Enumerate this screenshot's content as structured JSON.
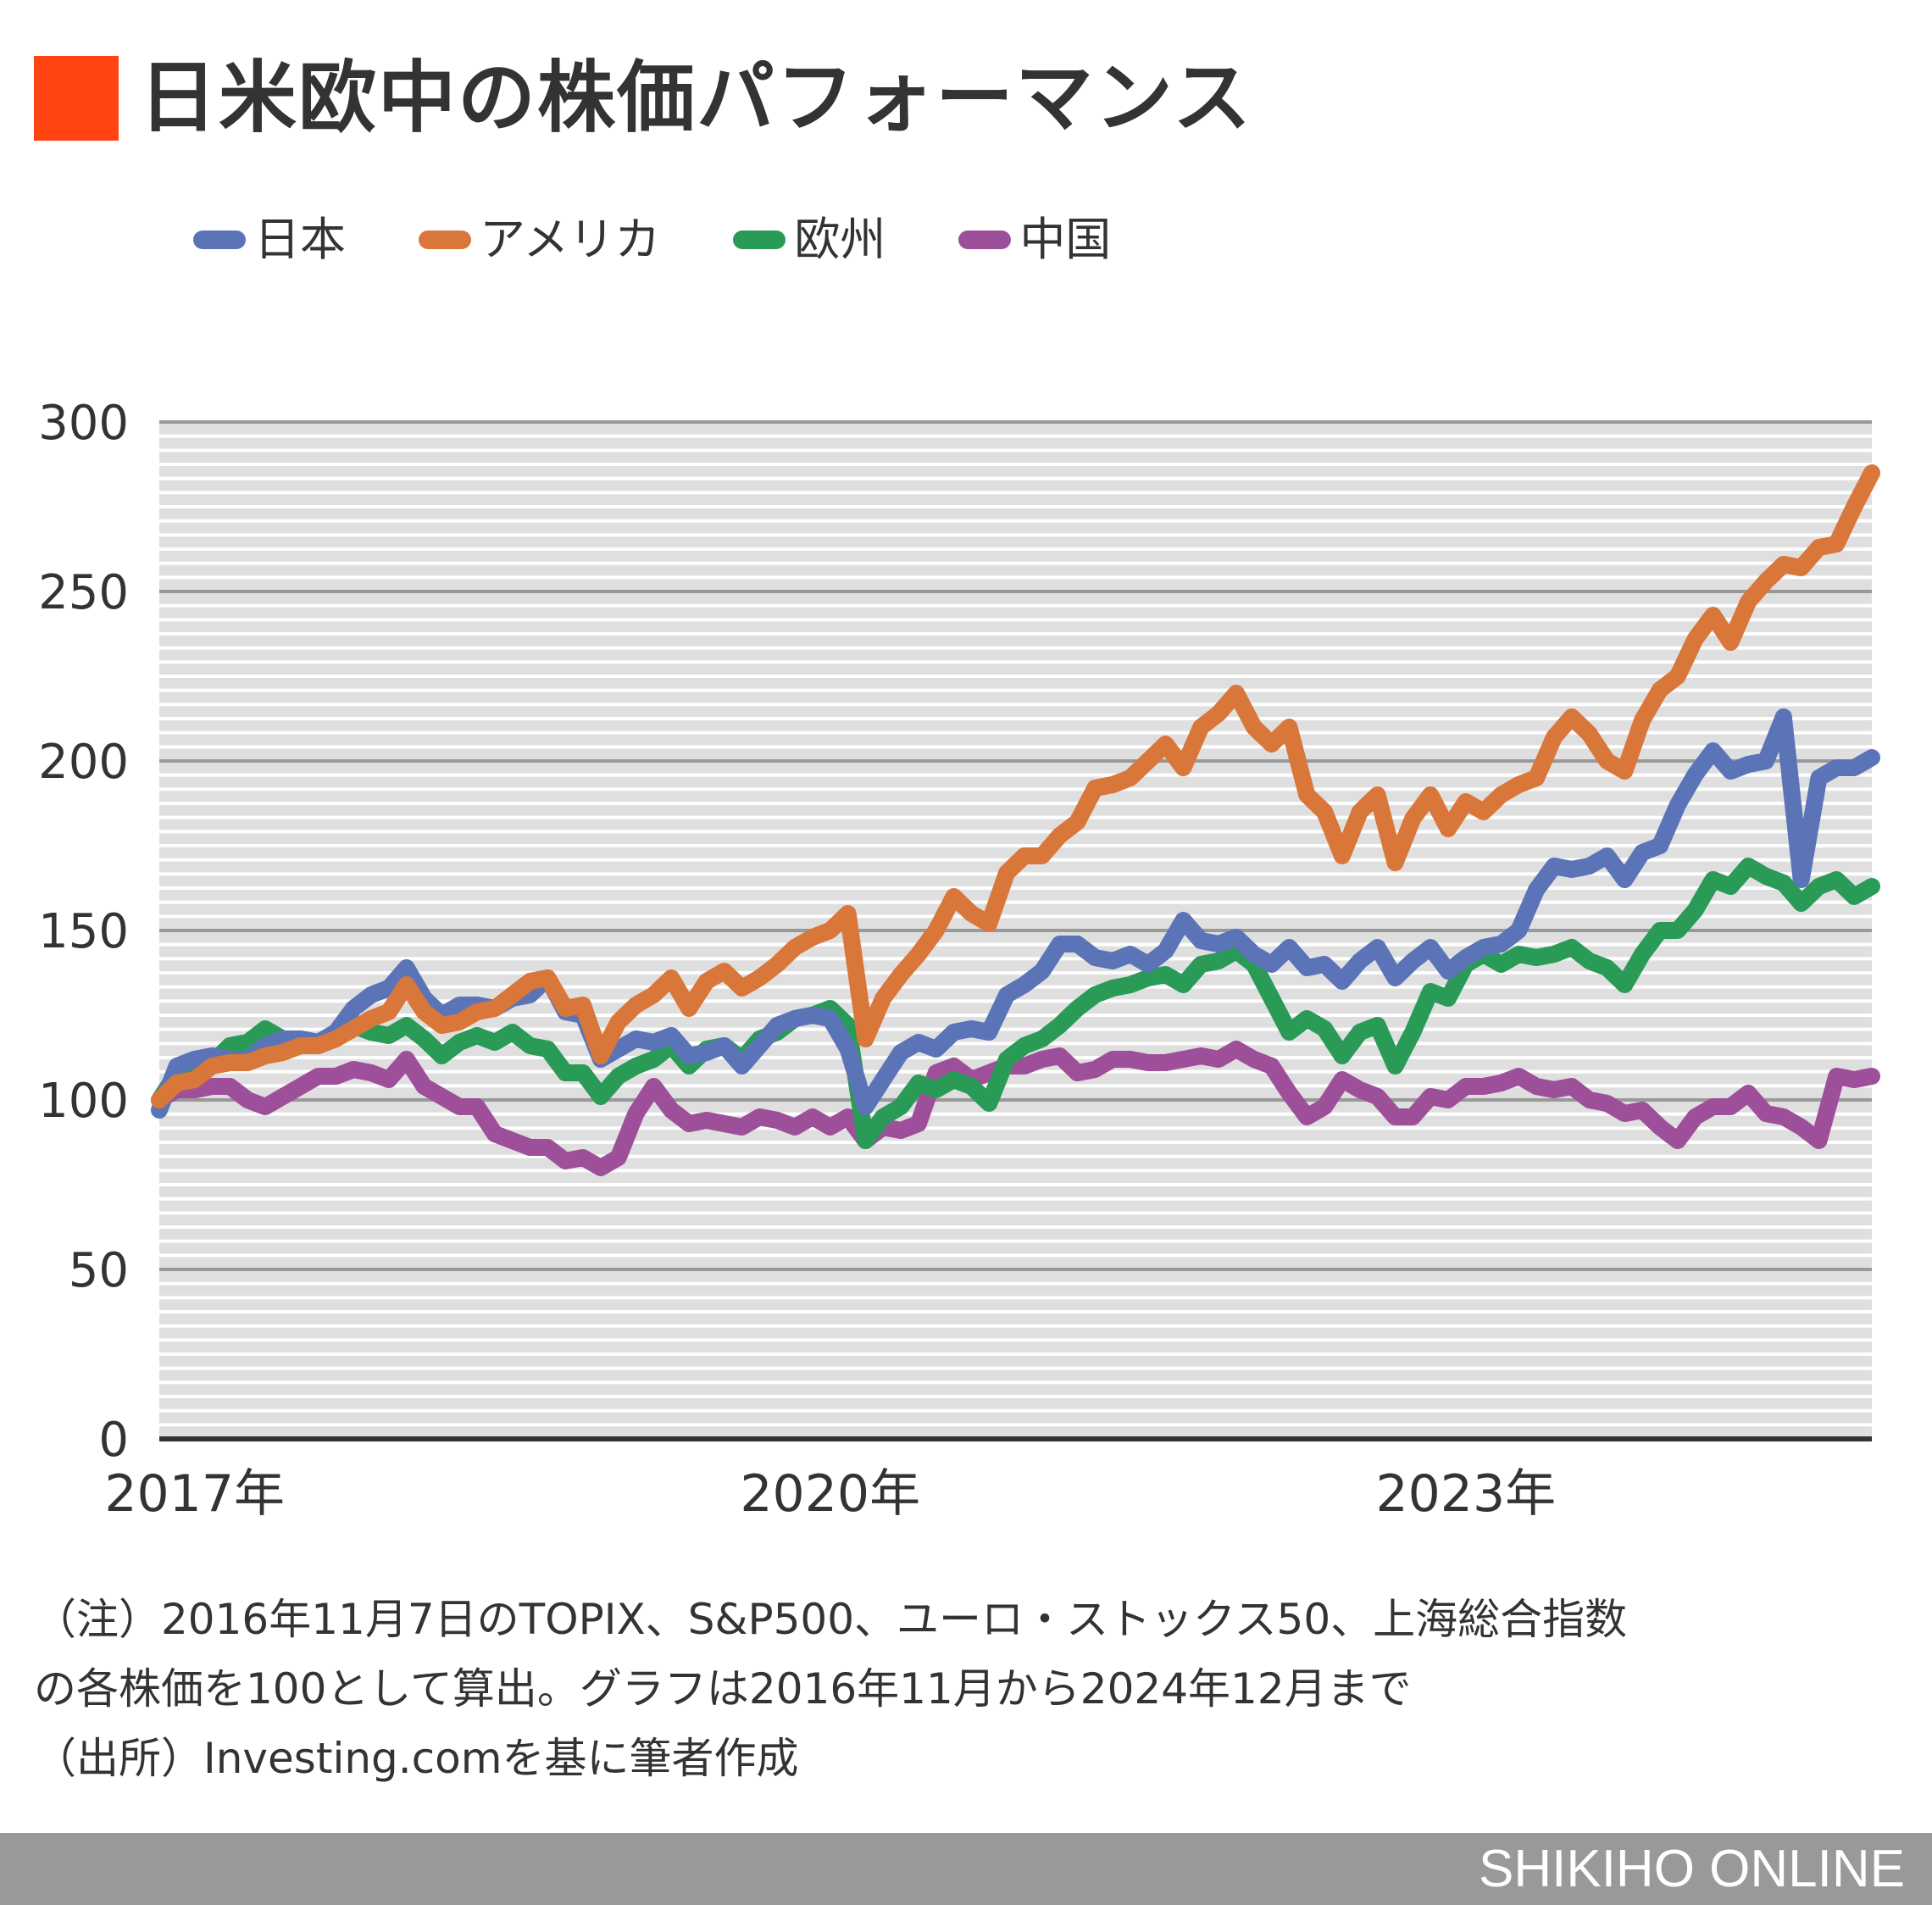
{
  "header": {
    "title": "日米欧中の株価パフォーマンス",
    "accent_color": "#FF4411"
  },
  "legend": [
    {
      "label": "日本",
      "color": "#5B74B8"
    },
    {
      "label": "アメリカ",
      "color": "#D9773A"
    },
    {
      "label": "欧州",
      "color": "#2A9A57"
    },
    {
      "label": "中国",
      "color": "#9E4F9A"
    }
  ],
  "notes": {
    "line1": "（注）2016年11月7日のTOPIX、S&P500、ユーロ・ストックス50、上海総合指数",
    "line2": "の各株価を100として算出。グラフは2016年11月から2024年12月まで",
    "line3": "（出所）Investing.comを基に筆者作成"
  },
  "footer": {
    "brand": "SHIKIHO ONLINE",
    "bar_color": "#999999"
  },
  "chart_data": {
    "type": "line",
    "title": "日米欧中の株価パフォーマンス",
    "xlabel": "",
    "ylabel": "",
    "ylim": [
      0,
      300
    ],
    "yticks": [
      0,
      50,
      100,
      150,
      200,
      250,
      300
    ],
    "xtick_labels": [
      {
        "label": "2017年",
        "month_index": 2
      },
      {
        "label": "2020年",
        "month_index": 38
      },
      {
        "label": "2023年",
        "month_index": 74
      }
    ],
    "x_start": "2016-11",
    "x_end": "2024-12",
    "x_unit": "month",
    "grid": true,
    "legend_position": "top",
    "series": [
      {
        "name": "日本",
        "color": "#5B74B8",
        "values": [
          97,
          110,
          112,
          113,
          112,
          112,
          116,
          118,
          118,
          117,
          120,
          127,
          131,
          133,
          139,
          130,
          125,
          128,
          128,
          127,
          130,
          131,
          136,
          126,
          125,
          112,
          115,
          118,
          117,
          119,
          113,
          114,
          116,
          110,
          116,
          122,
          124,
          125,
          124,
          115,
          98,
          106,
          114,
          117,
          115,
          120,
          121,
          120,
          131,
          134,
          138,
          146,
          146,
          142,
          141,
          143,
          140,
          144,
          153,
          147,
          146,
          148,
          143,
          140,
          145,
          139,
          140,
          135,
          141,
          145,
          136,
          141,
          145,
          138,
          142,
          145,
          146,
          150,
          162,
          169,
          168,
          169,
          172,
          165,
          173,
          175,
          187,
          196,
          203,
          197,
          199,
          200,
          213,
          165,
          195,
          198,
          198,
          201
        ]
      },
      {
        "name": "アメリカ",
        "color": "#D9773A",
        "values": [
          100,
          105,
          106,
          110,
          111,
          111,
          113,
          114,
          116,
          116,
          118,
          121,
          124,
          126,
          134,
          126,
          122,
          123,
          126,
          127,
          131,
          135,
          136,
          127,
          128,
          113,
          123,
          128,
          131,
          136,
          127,
          135,
          138,
          133,
          136,
          140,
          145,
          148,
          150,
          155,
          118,
          130,
          137,
          143,
          150,
          160,
          155,
          152,
          167,
          172,
          172,
          178,
          182,
          192,
          193,
          195,
          200,
          205,
          198,
          210,
          214,
          220,
          210,
          205,
          210,
          190,
          185,
          172,
          185,
          190,
          170,
          183,
          190,
          180,
          188,
          185,
          190,
          193,
          195,
          207,
          213,
          208,
          200,
          197,
          212,
          221,
          225,
          236,
          243,
          235,
          247,
          253,
          258,
          257,
          263,
          264,
          275,
          285
        ]
      },
      {
        "name": "欧州",
        "color": "#2A9A57",
        "values": [
          100,
          108,
          109,
          111,
          116,
          117,
          121,
          118,
          117,
          116,
          119,
          122,
          120,
          119,
          122,
          118,
          113,
          117,
          119,
          117,
          120,
          116,
          115,
          108,
          108,
          101,
          107,
          110,
          112,
          116,
          110,
          115,
          116,
          112,
          118,
          120,
          124,
          125,
          127,
          122,
          88,
          95,
          98,
          105,
          103,
          106,
          104,
          99,
          112,
          116,
          118,
          122,
          127,
          131,
          133,
          134,
          136,
          137,
          134,
          140,
          141,
          144,
          140,
          130,
          120,
          124,
          121,
          113,
          120,
          122,
          110,
          120,
          132,
          130,
          140,
          143,
          140,
          143,
          142,
          143,
          145,
          141,
          139,
          134,
          143,
          150,
          150,
          156,
          165,
          163,
          169,
          166,
          164,
          158,
          163,
          165,
          160,
          163
        ]
      },
      {
        "name": "中国",
        "color": "#9E4F9A",
        "values": [
          100,
          103,
          103,
          104,
          104,
          100,
          98,
          101,
          104,
          107,
          107,
          109,
          108,
          106,
          112,
          104,
          101,
          98,
          98,
          90,
          88,
          86,
          86,
          82,
          83,
          80,
          83,
          96,
          104,
          97,
          93,
          94,
          93,
          92,
          95,
          94,
          92,
          95,
          92,
          95,
          88,
          92,
          91,
          93,
          108,
          110,
          106,
          108,
          110,
          110,
          112,
          113,
          108,
          109,
          112,
          112,
          111,
          111,
          112,
          113,
          112,
          115,
          112,
          110,
          102,
          95,
          98,
          106,
          103,
          101,
          95,
          95,
          101,
          100,
          104,
          104,
          105,
          107,
          104,
          103,
          104,
          100,
          99,
          96,
          97,
          92,
          88,
          95,
          98,
          98,
          102,
          96,
          95,
          92,
          88,
          107,
          106,
          107
        ]
      }
    ]
  }
}
